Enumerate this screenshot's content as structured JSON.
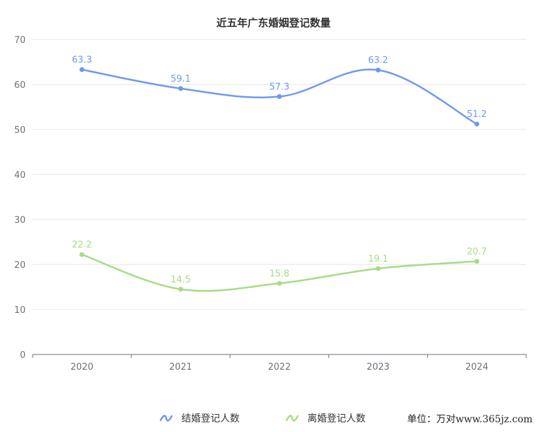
{
  "chart_data": {
    "type": "line",
    "title": "近五年广东婚姻登记数量",
    "categories": [
      "2020",
      "2021",
      "2022",
      "2023",
      "2024"
    ],
    "ylim": [
      0,
      70
    ],
    "yticks": [
      "0",
      "10",
      "20",
      "30",
      "40",
      "50",
      "60",
      "70"
    ],
    "series": [
      {
        "name": "结婚登记人数",
        "values": [
          63.3,
          59.1,
          57.3,
          63.2,
          51.2
        ],
        "labels": [
          "63.3",
          "59.1",
          "57.3",
          "63.2",
          "51.2"
        ],
        "color": "#6f98f0"
      },
      {
        "name": "离婚登记人数",
        "values": [
          22.2,
          14.5,
          15.8,
          19.1,
          20.7
        ],
        "labels": [
          "22.2",
          "14.5",
          "15.8",
          "19.1",
          "20.7"
        ],
        "color": "#a4dd84"
      }
    ],
    "grid": true,
    "legend_position": "bottom",
    "unit": "单位：万对",
    "watermark": "www.365jz.com"
  }
}
